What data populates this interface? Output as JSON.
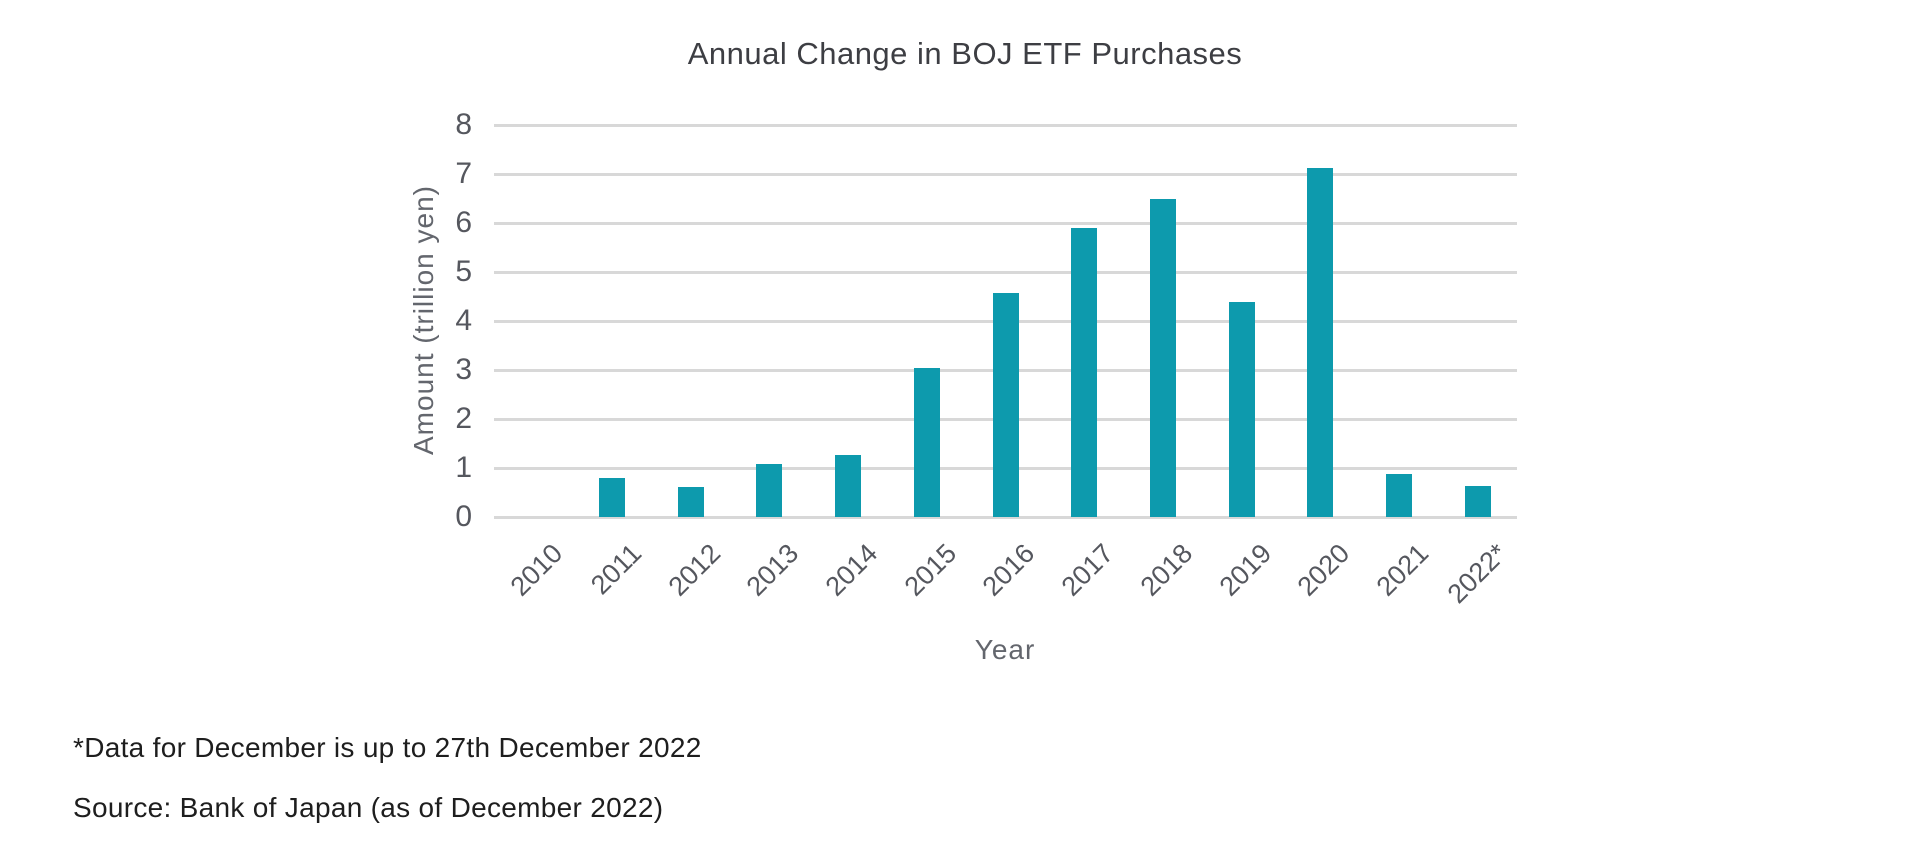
{
  "page": {
    "background": "#ffffff"
  },
  "chart_data": {
    "type": "bar",
    "title": "Annual Change in BOJ ETF Purchases",
    "xlabel": "Year",
    "ylabel": "Amount (trillion yen)",
    "categories": [
      "2010",
      "2011",
      "2012",
      "2013",
      "2014",
      "2015",
      "2016",
      "2017",
      "2018",
      "2019",
      "2020",
      "2021",
      "2022*"
    ],
    "values": [
      0,
      0.8,
      0.62,
      1.08,
      1.26,
      3.05,
      4.58,
      5.9,
      6.5,
      4.38,
      7.13,
      0.87,
      0.63
    ],
    "ylim": [
      0,
      8
    ],
    "ytick_step": 1,
    "yticks": [
      "0",
      "1",
      "2",
      "3",
      "4",
      "5",
      "6",
      "7",
      "8"
    ],
    "grid": true,
    "legend": false,
    "bar_color": "#0D9AAD",
    "gridline_color": "#D8D8D8"
  },
  "footnotes": {
    "line1": "*Data for December is up to 27th December 2022",
    "line2": "Source: Bank of Japan (as of December 2022)"
  }
}
